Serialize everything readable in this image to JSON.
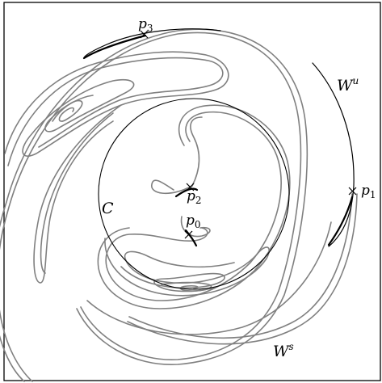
{
  "figure": {
    "labels": {
      "circle": "C",
      "unstable_manifold": "W",
      "unstable_manifold_sup": "u",
      "stable_manifold": "W",
      "stable_manifold_sup": "s",
      "p0": "p",
      "p0_sub": "0",
      "p1": "p",
      "p1_sub": "1",
      "p2": "p",
      "p2_sub": "2",
      "p3": "p",
      "p3_sub": "3"
    },
    "points": [
      {
        "id": "p0",
        "marker": "cross"
      },
      {
        "id": "p1",
        "marker": "cross"
      },
      {
        "id": "p2",
        "marker": "cross"
      },
      {
        "id": "p3",
        "marker": "cross"
      }
    ],
    "colors": {
      "stable_manifold": "#808080",
      "unstable_manifold": "#000000",
      "circle": "#000000",
      "frame": "#000000",
      "background": "#ffffff"
    }
  }
}
